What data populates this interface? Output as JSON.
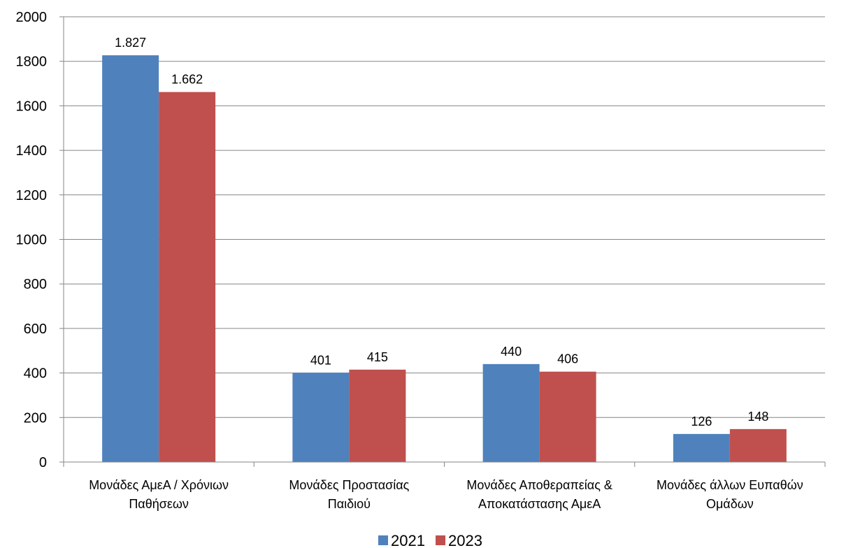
{
  "chart_data": {
    "type": "bar",
    "title": "",
    "xlabel": "",
    "ylabel": "",
    "ylim": [
      0,
      2000
    ],
    "yticks": [
      0,
      200,
      400,
      600,
      800,
      1000,
      1200,
      1400,
      1600,
      1800,
      2000
    ],
    "grid": true,
    "legend_position": "bottom",
    "categories": [
      [
        "Μονάδες ΑμεΑ / Χρόνιων",
        "Παθήσεων"
      ],
      [
        "Μονάδες Προστασίας",
        "Παιδιού"
      ],
      [
        "Μονάδες Αποθεραπείας &",
        "Αποκατάστασης ΑμεΑ"
      ],
      [
        "Μονάδες άλλων Ευπαθών",
        "Ομάδων"
      ]
    ],
    "series": [
      {
        "name": "2021",
        "color": "#4F81BD",
        "values": [
          1827,
          401,
          440,
          126
        ],
        "labels": [
          "1.827",
          "401",
          "440",
          "126"
        ]
      },
      {
        "name": "2023",
        "color": "#C0504D",
        "values": [
          1662,
          415,
          406,
          148
        ],
        "labels": [
          "1.662",
          "415",
          "406",
          "148"
        ]
      }
    ]
  }
}
